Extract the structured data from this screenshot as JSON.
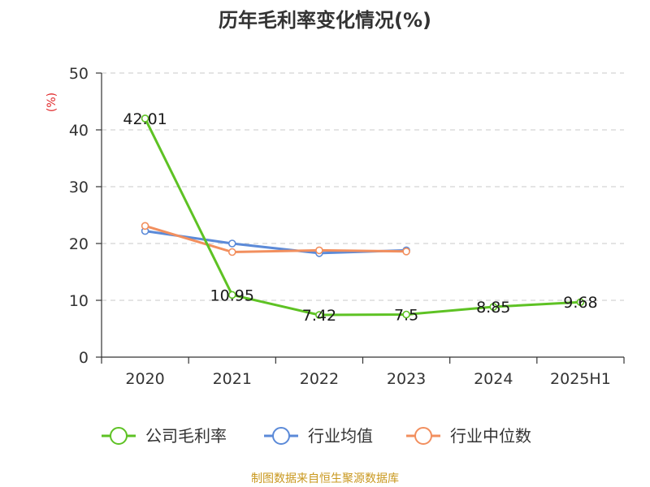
{
  "chart_data": {
    "type": "line",
    "title": "历年毛利率变化情况(%)",
    "ylabel": "(%)",
    "xlabel": "",
    "ylim": [
      0,
      50
    ],
    "yticks": [
      0,
      10,
      20,
      30,
      40,
      50
    ],
    "grid": true,
    "legend_position": "bottom",
    "categories": [
      "2020",
      "2021",
      "2022",
      "2023",
      "2024",
      "2025H1"
    ],
    "series": [
      {
        "name": "公司毛利率",
        "color": "#5ec224",
        "values": [
          42.01,
          10.95,
          7.42,
          7.5,
          8.85,
          9.68
        ],
        "labels": [
          "42.01",
          "10.95",
          "7.42",
          "7.5",
          "8.85",
          "9.68"
        ]
      },
      {
        "name": "行业均值",
        "color": "#5b8ad8",
        "values": [
          22.2,
          20.0,
          18.3,
          18.8,
          null,
          null
        ]
      },
      {
        "name": "行业中位数",
        "color": "#f28f5e",
        "values": [
          23.1,
          18.5,
          18.8,
          18.6,
          null,
          null
        ]
      }
    ],
    "source": "制图数据来自恒生聚源数据库"
  }
}
